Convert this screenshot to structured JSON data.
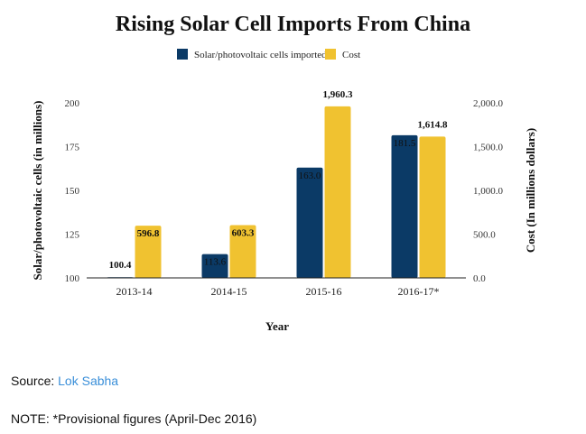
{
  "chart_data": {
    "type": "bar",
    "title": "Rising Solar Cell Imports From China",
    "categories": [
      "2013-14",
      "2014-15",
      "2015-16",
      "2016-17*"
    ],
    "series": [
      {
        "name": "Solar/photovoltaic cells imported",
        "axis": "left",
        "color": "#0b3a66",
        "values": [
          100.4,
          113.6,
          163.0,
          181.5
        ],
        "labels": [
          "100.4",
          "113.6",
          "163.0",
          "181.5"
        ]
      },
      {
        "name": "Cost",
        "axis": "right",
        "color": "#f0c230",
        "values": [
          596.8,
          603.3,
          1960.3,
          1614.8
        ],
        "labels": [
          "596.8",
          "603.3",
          "1,960.3",
          "1,614.8"
        ]
      }
    ],
    "xlabel": "Year",
    "ylabel": "Solar/photovoltaic cells (in millions)",
    "y2label": "Cost (In millions dollars)",
    "ylim": [
      100,
      200
    ],
    "y2lim": [
      0,
      2000
    ],
    "yticks": [
      "100",
      "125",
      "150",
      "175",
      "200"
    ],
    "y2ticks": [
      "0.0",
      "500.0",
      "1,000.0",
      "1,500.0",
      "2,000.0"
    ],
    "legend": "top-center",
    "grid": false
  },
  "source": {
    "label": "Source:",
    "link_text": "Lok Sabha"
  },
  "note": "NOTE: *Provisional figures (April-Dec 2016)"
}
